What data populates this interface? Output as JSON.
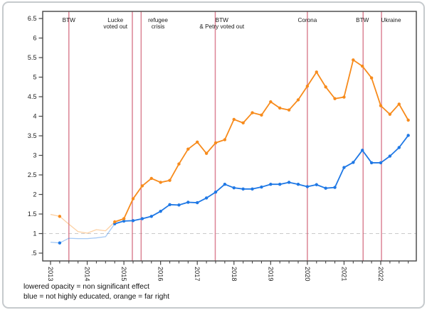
{
  "figure": {
    "caption_line1": "lowered opacity = non significant effect",
    "caption_line2": "blue = not highly educated, orange = far right"
  },
  "chart_data": {
    "type": "line",
    "title": "",
    "xlabel": "",
    "ylabel": "",
    "grid": false,
    "legend_position": "none",
    "xlim": [
      2012.787,
      2022.97
    ],
    "ylim": [
      0.3,
      6.682
    ],
    "xticks": [
      2013,
      2014,
      2015,
      2016,
      2017,
      2018,
      2019,
      2020,
      2021,
      2022
    ],
    "xtick_labels": [
      "2013",
      "2014",
      "2015",
      "2016",
      "2017",
      "2018",
      "2019",
      "2020",
      "2021",
      "2022"
    ],
    "x_minor_tick_step": 0.25,
    "yticks": [
      6.5,
      6,
      5.5,
      5,
      4.5,
      4,
      3.5,
      3,
      2.5,
      2,
      1.5,
      1,
      0.5
    ],
    "ytick_labels": [
      "6.5",
      "6",
      "5.5",
      "5",
      "4.5",
      "4",
      "3.5",
      "3",
      "2.5",
      "2",
      "1.5",
      "1",
      ".5"
    ],
    "reference_line_y": 1,
    "x_start": 2013.0,
    "x_step": 0.25,
    "quarters": [
      "2013q1",
      "2013q2",
      "2013q3",
      "2013q4",
      "2014q1",
      "2014q2",
      "2014q3",
      "2014q4",
      "2015q1",
      "2015q2",
      "2015q3",
      "2015q4",
      "2016q1",
      "2016q2",
      "2016q3",
      "2016q4",
      "2017q1",
      "2017q2",
      "2017q3",
      "2017q4",
      "2018q1",
      "2018q2",
      "2018q3",
      "2018q4",
      "2019q1",
      "2019q2",
      "2019q3",
      "2019q4",
      "2020q1",
      "2020q2",
      "2020q3",
      "2020q4",
      "2021q1",
      "2021q2",
      "2021q3",
      "2021q4",
      "2022q1",
      "2022q2",
      "2022q3",
      "2022q4"
    ],
    "series": [
      {
        "name": "not highly educated",
        "color": "#1f78e5",
        "values": [
          0.78,
          0.76,
          0.88,
          0.87,
          0.87,
          0.89,
          0.92,
          1.25,
          1.32,
          1.33,
          1.38,
          1.44,
          1.57,
          1.74,
          1.73,
          1.8,
          1.79,
          1.91,
          2.06,
          2.26,
          2.17,
          2.14,
          2.14,
          2.19,
          2.26,
          2.26,
          2.31,
          2.26,
          2.2,
          2.25,
          2.16,
          2.18,
          2.69,
          2.82,
          3.13,
          2.81,
          2.81,
          2.98,
          3.2,
          3.51
        ],
        "non_significant_indices": [
          0,
          2,
          3,
          4,
          5,
          6
        ]
      },
      {
        "name": "far right",
        "color": "#f78b1c",
        "values": [
          1.49,
          1.44,
          1.24,
          1.05,
          1.01,
          1.1,
          1.07,
          1.3,
          1.38,
          1.89,
          2.22,
          2.41,
          2.31,
          2.36,
          2.78,
          3.16,
          3.34,
          3.05,
          3.32,
          3.4,
          3.92,
          3.83,
          4.09,
          4.03,
          4.37,
          4.21,
          4.16,
          4.42,
          4.77,
          5.13,
          4.75,
          4.45,
          4.49,
          5.44,
          5.28,
          4.98,
          4.27,
          4.05,
          4.31,
          3.9
        ],
        "non_significant_indices": [
          0,
          2,
          3,
          4,
          5,
          6
        ]
      }
    ],
    "events": [
      {
        "x": 2013.5,
        "label_lines": [
          "BTW"
        ],
        "label_x": 2013.5
      },
      {
        "x": 2015.23,
        "label_lines": [
          "Lucke",
          "voted out"
        ],
        "label_x": 2014.77
      },
      {
        "x": 2015.47,
        "label_lines": [
          "refugee",
          "crisis"
        ],
        "label_x": 2015.93
      },
      {
        "x": 2017.49,
        "label_lines": [
          "BTW",
          "& Petry voted out"
        ],
        "label_x": 2017.67
      },
      {
        "x": 2020.0,
        "label_lines": [
          "Corona"
        ],
        "label_x": 2020.0
      },
      {
        "x": 2021.52,
        "label_lines": [
          "BTW"
        ],
        "label_x": 2021.5
      },
      {
        "x": 2022.02,
        "label_lines": [
          "Ukraine"
        ],
        "label_x": 2022.28
      }
    ],
    "event_line_color": "#d05c72",
    "reference_line_color": "#cbcbcb",
    "axis_color": "#454545",
    "captions": [
      "lowered opacity = non significant effect",
      "blue = not highly educated, orange = far right"
    ]
  }
}
